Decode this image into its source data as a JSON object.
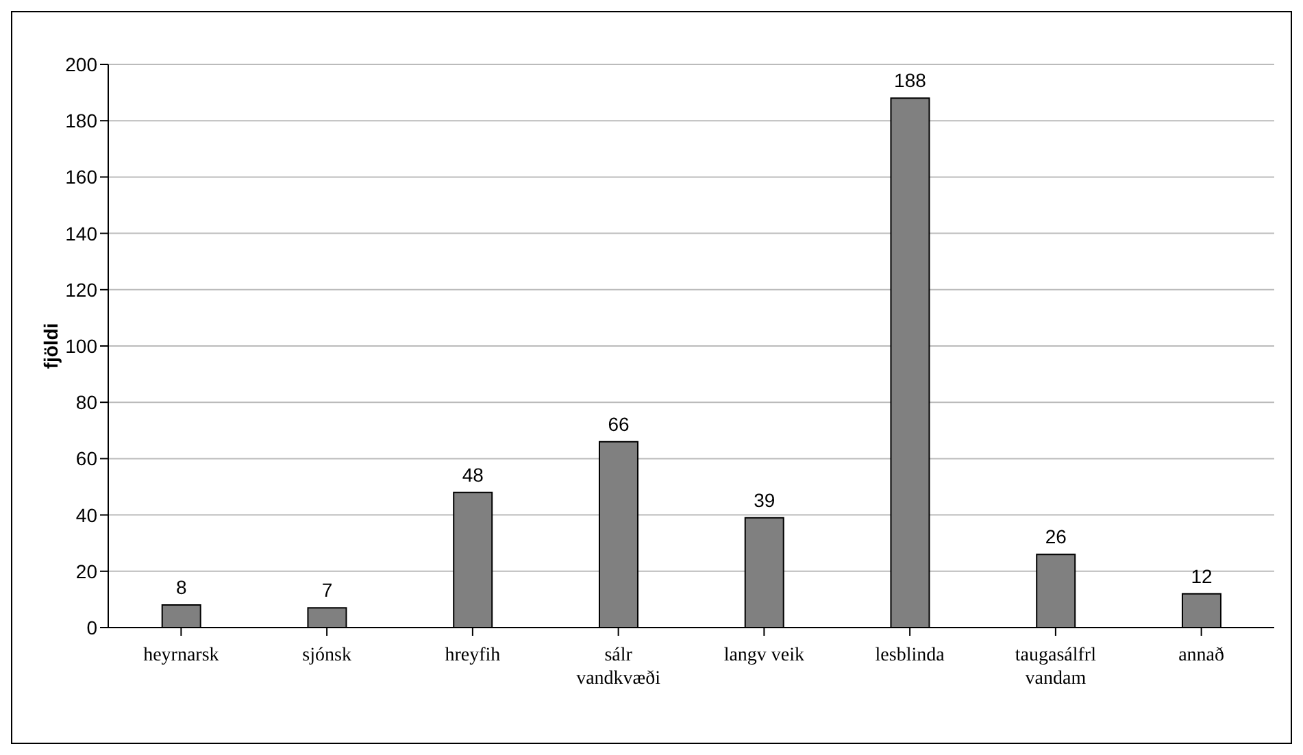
{
  "chart_data": {
    "type": "bar",
    "ylabel": "fjöldi",
    "categories": [
      "heyrnarsk",
      "sjónsk",
      "hreyfih",
      "sálr vandkvæði",
      "langv veik",
      "lesblinda",
      "taugasálfrl vandam",
      "annað"
    ],
    "values": [
      8,
      7,
      48,
      66,
      39,
      188,
      26,
      12
    ],
    "color": "#808080",
    "ylim": [
      0,
      200
    ],
    "yticks": [
      0,
      20,
      40,
      60,
      80,
      100,
      120,
      140,
      160,
      180,
      200
    ],
    "grid": "y",
    "data_labels": true
  }
}
